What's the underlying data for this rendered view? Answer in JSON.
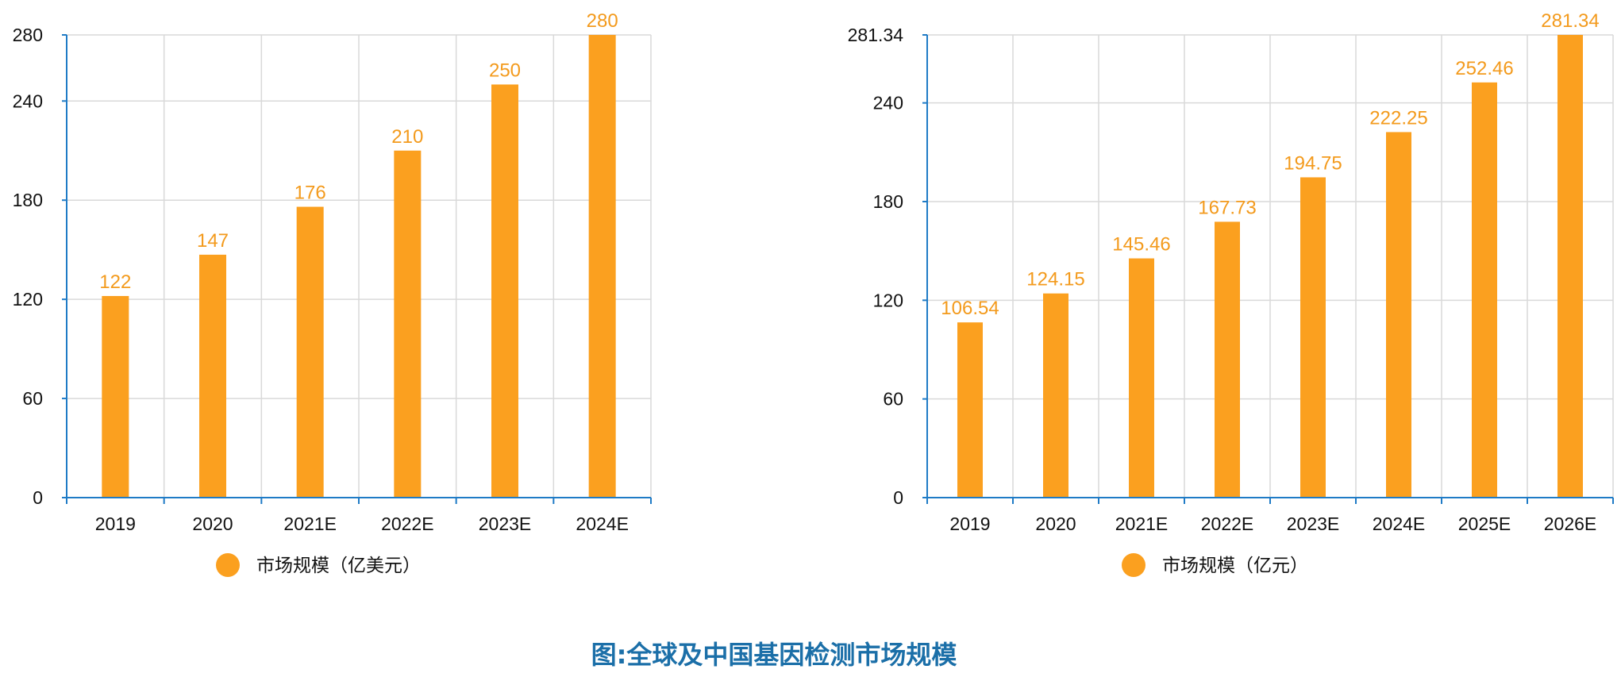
{
  "caption": "图:全球及中国基因检测市场规模",
  "colors": {
    "bar": "#FBA01F",
    "label": "#F39A1C",
    "axis": "#1F7BC6",
    "grid": "#D9D9D9",
    "caption": "#1B6FA8",
    "tick_text": "#111111"
  },
  "chart_data": [
    {
      "type": "bar",
      "title": "",
      "xlabel": "",
      "ylabel": "",
      "categories": [
        "2019",
        "2020",
        "2021E",
        "2022E",
        "2023E",
        "2024E"
      ],
      "series": [
        {
          "name": "市场规模（亿美元）",
          "values": [
            122,
            147,
            176,
            210,
            250,
            280
          ]
        }
      ],
      "data_labels": [
        "122",
        "147",
        "176",
        "210",
        "250",
        "280"
      ],
      "ylim": [
        0,
        280
      ],
      "yticks": [
        0,
        60,
        120,
        180,
        240,
        280
      ],
      "ytick_labels": [
        "0",
        "60",
        "120",
        "180",
        "240",
        "280"
      ],
      "grid": true,
      "legend": "bottom"
    },
    {
      "type": "bar",
      "title": "",
      "xlabel": "",
      "ylabel": "",
      "categories": [
        "2019",
        "2020",
        "2021E",
        "2022E",
        "2023E",
        "2024E",
        "2025E",
        "2026E"
      ],
      "series": [
        {
          "name": "市场规模（亿元）",
          "values": [
            106.54,
            124.15,
            145.46,
            167.73,
            194.75,
            222.25,
            252.46,
            281.34
          ]
        }
      ],
      "data_labels": [
        "106.54",
        "124.15",
        "145.46",
        "167.73",
        "194.75",
        "222.25",
        "252.46",
        "281.34"
      ],
      "ylim": [
        0,
        281.34
      ],
      "yticks": [
        0,
        60,
        120,
        180,
        240,
        281.34
      ],
      "ytick_labels": [
        "0",
        "60",
        "120",
        "180",
        "240",
        "281.34"
      ],
      "grid": true,
      "legend": "bottom"
    }
  ]
}
